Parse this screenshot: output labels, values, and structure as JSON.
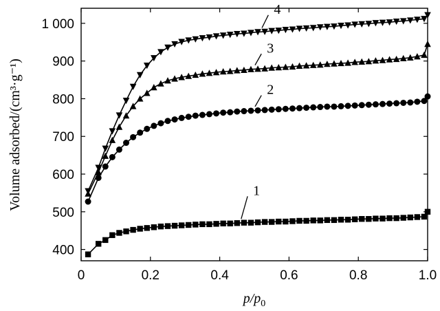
{
  "chart_data": {
    "type": "scatter",
    "xlabel": "p/p0",
    "xlabel_main": "p/p",
    "xlabel_sub": "0",
    "ylabel": "Volume adsorbed/(cm³·g⁻¹)",
    "xlim": [
      0,
      1.0
    ],
    "ylim": [
      370,
      1040
    ],
    "x_ticks": [
      0,
      0.2,
      0.4,
      0.6,
      0.8,
      1.0
    ],
    "x_tick_labels": [
      "0",
      "0.2",
      "0.4",
      "0.6",
      "0.8",
      "1.0"
    ],
    "y_ticks": [
      400,
      500,
      600,
      700,
      800,
      900,
      1000
    ],
    "y_tick_labels": [
      "400",
      "500",
      "600",
      "700",
      "800",
      "900",
      "1 000"
    ],
    "grid": false,
    "series": [
      {
        "name": "1",
        "marker": "square",
        "x": [
          0.02,
          0.05,
          0.07,
          0.09,
          0.11,
          0.13,
          0.15,
          0.17,
          0.19,
          0.21,
          0.23,
          0.25,
          0.27,
          0.29,
          0.31,
          0.33,
          0.35,
          0.37,
          0.39,
          0.41,
          0.43,
          0.45,
          0.47,
          0.49,
          0.51,
          0.53,
          0.55,
          0.57,
          0.59,
          0.61,
          0.63,
          0.65,
          0.67,
          0.69,
          0.71,
          0.73,
          0.75,
          0.77,
          0.79,
          0.81,
          0.83,
          0.85,
          0.87,
          0.89,
          0.91,
          0.93,
          0.95,
          0.97,
          0.99,
          1.0
        ],
        "y": [
          387,
          415,
          425,
          438,
          444,
          448,
          452,
          455,
          457,
          459,
          461,
          462,
          463,
          464,
          465,
          466,
          467,
          467,
          468,
          469,
          469,
          470,
          471,
          471,
          472,
          473,
          473,
          474,
          474,
          475,
          476,
          476,
          477,
          477,
          478,
          478,
          479,
          479,
          480,
          481,
          481,
          482,
          482,
          483,
          483,
          484,
          485,
          486,
          487,
          500
        ],
        "label_xy": [
          0.52,
          552
        ]
      },
      {
        "name": "2",
        "marker": "circle",
        "x": [
          0.02,
          0.05,
          0.07,
          0.09,
          0.11,
          0.13,
          0.15,
          0.17,
          0.19,
          0.21,
          0.23,
          0.25,
          0.27,
          0.29,
          0.31,
          0.33,
          0.35,
          0.37,
          0.39,
          0.41,
          0.43,
          0.45,
          0.47,
          0.49,
          0.51,
          0.53,
          0.55,
          0.57,
          0.59,
          0.61,
          0.63,
          0.65,
          0.67,
          0.69,
          0.71,
          0.73,
          0.75,
          0.77,
          0.79,
          0.81,
          0.83,
          0.85,
          0.87,
          0.89,
          0.91,
          0.93,
          0.95,
          0.97,
          0.99,
          1.0
        ],
        "y": [
          527,
          590,
          620,
          645,
          665,
          683,
          698,
          710,
          720,
          728,
          735,
          741,
          745,
          749,
          752,
          755,
          757,
          759,
          761,
          763,
          764,
          766,
          767,
          768,
          769,
          770,
          771,
          772,
          773,
          774,
          775,
          776,
          777,
          778,
          779,
          779,
          780,
          781,
          782,
          783,
          784,
          785,
          786,
          787,
          788,
          789,
          790,
          792,
          794,
          806
        ],
        "label_xy": [
          0.56,
          820
        ]
      },
      {
        "name": "3",
        "marker": "triangle-up",
        "x": [
          0.02,
          0.05,
          0.07,
          0.09,
          0.11,
          0.13,
          0.15,
          0.17,
          0.19,
          0.21,
          0.23,
          0.25,
          0.27,
          0.29,
          0.31,
          0.33,
          0.35,
          0.37,
          0.39,
          0.41,
          0.43,
          0.45,
          0.47,
          0.49,
          0.51,
          0.53,
          0.55,
          0.57,
          0.59,
          0.61,
          0.63,
          0.65,
          0.67,
          0.69,
          0.71,
          0.73,
          0.75,
          0.77,
          0.79,
          0.81,
          0.83,
          0.85,
          0.87,
          0.89,
          0.91,
          0.93,
          0.95,
          0.97,
          0.99,
          1.0
        ],
        "y": [
          548,
          605,
          648,
          690,
          725,
          755,
          780,
          800,
          815,
          830,
          840,
          848,
          853,
          857,
          860,
          863,
          866,
          868,
          870,
          872,
          873,
          875,
          876,
          878,
          879,
          880,
          882,
          883,
          884,
          885,
          887,
          888,
          889,
          890,
          892,
          893,
          894,
          895,
          897,
          898,
          899,
          901,
          902,
          904,
          905,
          907,
          909,
          912,
          916,
          945
        ],
        "label_xy": [
          0.56,
          930
        ]
      },
      {
        "name": "4",
        "marker": "triangle-down",
        "x": [
          0.02,
          0.05,
          0.07,
          0.09,
          0.11,
          0.13,
          0.15,
          0.17,
          0.19,
          0.21,
          0.23,
          0.25,
          0.27,
          0.29,
          0.31,
          0.33,
          0.35,
          0.37,
          0.39,
          0.41,
          0.43,
          0.45,
          0.47,
          0.49,
          0.51,
          0.53,
          0.55,
          0.57,
          0.59,
          0.61,
          0.63,
          0.65,
          0.67,
          0.69,
          0.71,
          0.73,
          0.75,
          0.77,
          0.79,
          0.81,
          0.83,
          0.85,
          0.87,
          0.89,
          0.91,
          0.93,
          0.95,
          0.97,
          0.99,
          1.0
        ],
        "y": [
          555,
          617,
          668,
          714,
          756,
          795,
          832,
          863,
          888,
          908,
          924,
          936,
          945,
          951,
          955,
          958,
          961,
          963,
          966,
          968,
          970,
          972,
          973,
          975,
          977,
          978,
          980,
          981,
          983,
          984,
          986,
          987,
          988,
          990,
          991,
          992,
          994,
          995,
          997,
          998,
          999,
          1001,
          1002,
          1003,
          1005,
          1006,
          1008,
          1010,
          1012,
          1022
        ],
        "label_xy": [
          0.58,
          1033
        ]
      }
    ]
  }
}
